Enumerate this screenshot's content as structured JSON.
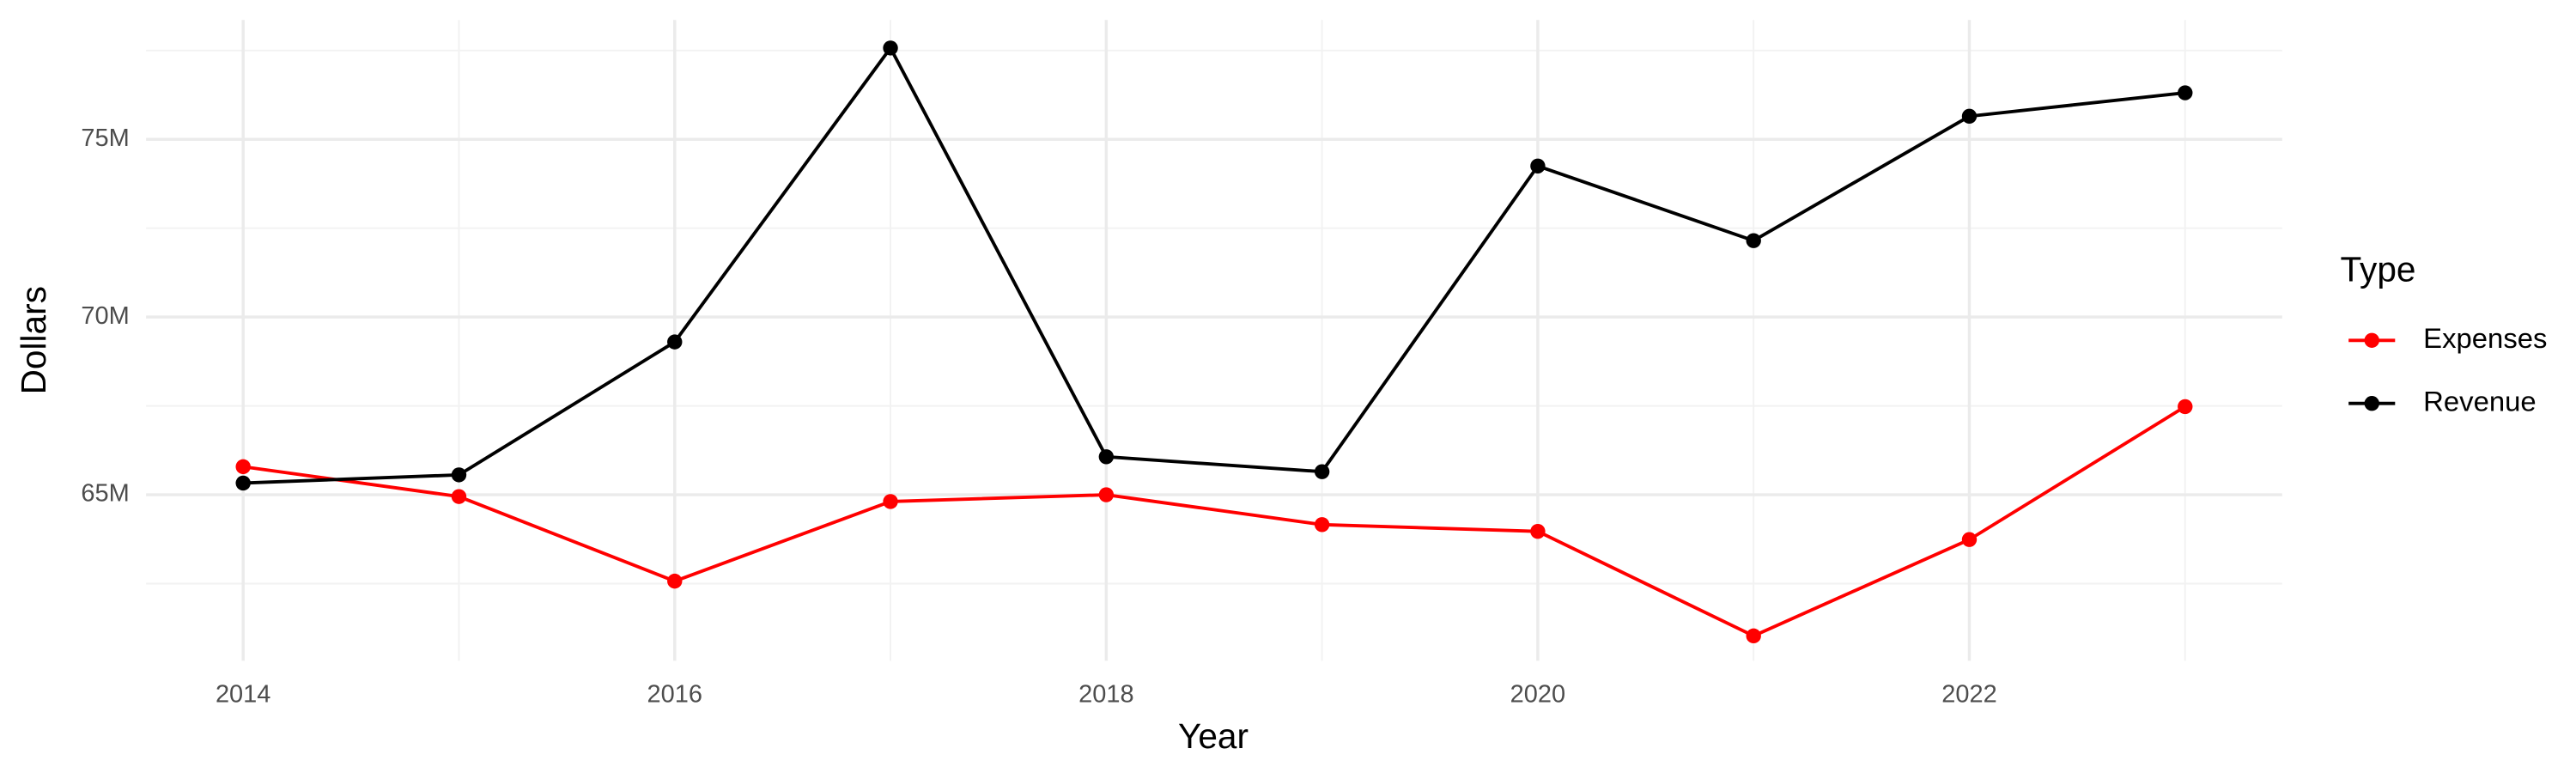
{
  "chart_data": {
    "type": "line",
    "x_label": "Year",
    "y_label": "Dollars",
    "legend_title": "Type",
    "legend": "right",
    "grid": true,
    "x": [
      2014,
      2015,
      2016,
      2017,
      2018,
      2019,
      2020,
      2021,
      2022,
      2023
    ],
    "series": [
      {
        "name": "Expenses",
        "color": "#ff0000",
        "values": [
          65790000,
          64950000,
          62570000,
          64810000,
          65000000,
          64160000,
          63970000,
          61030000,
          63740000,
          67480000
        ]
      },
      {
        "name": "Revenue",
        "color": "#000000",
        "values": [
          65330000,
          65560000,
          69300000,
          77570000,
          66070000,
          65650000,
          74250000,
          72150000,
          75650000,
          76310000
        ]
      }
    ],
    "xlim": [
      2013.55,
      2023.45
    ],
    "xticks": [
      2014,
      2016,
      2018,
      2020,
      2022
    ],
    "ylim": [
      60330000,
      78360000
    ],
    "yticks": [
      {
        "value": 65000000,
        "label": "65M"
      },
      {
        "value": 70000000,
        "label": "70M"
      },
      {
        "value": 75000000,
        "label": "75M"
      }
    ]
  }
}
